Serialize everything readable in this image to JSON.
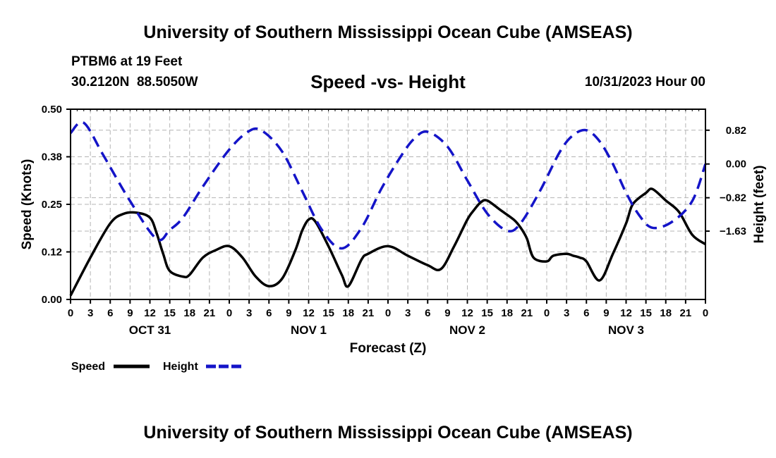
{
  "header": {
    "title": "University of Southern Mississippi Ocean Cube (AMSEAS)",
    "station": "PTBM6 at 19 Feet",
    "location": "30.2120N  88.5050W",
    "subtitle": "Speed -vs- Height",
    "date": "10/31/2023 Hour 00"
  },
  "footer": {
    "title": "University of Southern Mississippi Ocean Cube (AMSEAS)"
  },
  "chart_data": {
    "type": "line",
    "title": "Speed -vs- Height",
    "xlabel": "Forecast (Z)",
    "ylabel": "Speed (Knots)",
    "y2label": "Height (feet)",
    "xlim": [
      0,
      96
    ],
    "ylim": [
      0,
      0.5
    ],
    "y2lim": [
      -3.29,
      1.33
    ],
    "x_ticks": [
      0,
      3,
      6,
      9,
      12,
      15,
      18,
      21,
      24,
      27,
      30,
      33,
      36,
      39,
      42,
      45,
      48,
      51,
      54,
      57,
      60,
      63,
      66,
      69,
      72,
      75,
      78,
      81,
      84,
      87,
      90,
      93,
      96
    ],
    "x_tick_labels": [
      "0",
      "3",
      "6",
      "9",
      "12",
      "15",
      "18",
      "21",
      "0",
      "3",
      "6",
      "9",
      "12",
      "15",
      "18",
      "21",
      "0",
      "3",
      "6",
      "9",
      "12",
      "15",
      "18",
      "21",
      "0",
      "3",
      "6",
      "9",
      "12",
      "15",
      "18",
      "21",
      "0"
    ],
    "day_labels": [
      {
        "x": 12,
        "label": "OCT 31"
      },
      {
        "x": 36,
        "label": "NOV 1"
      },
      {
        "x": 60,
        "label": "NOV 2"
      },
      {
        "x": 84,
        "label": "NOV 3"
      }
    ],
    "y_ticks": [
      0,
      0.125,
      0.25,
      0.375,
      0.5
    ],
    "y_tick_labels": [
      "0.00",
      "0.12",
      "0.25",
      "0.38",
      "0.50"
    ],
    "y2_ticks": [
      0.82,
      0,
      -0.82,
      -1.63
    ],
    "y2_tick_labels": [
      "0.82",
      "0.00",
      "−0.82",
      "−1.63"
    ],
    "grid": true,
    "legend": [
      {
        "name": "Speed",
        "color": "#000000",
        "dash": "solid"
      },
      {
        "name": "Height",
        "color": "#1414c8",
        "dash": "dashed"
      }
    ],
    "series": [
      {
        "name": "Speed",
        "axis": "left",
        "color": "#000000",
        "x": [
          0,
          3,
          6,
          8,
          10,
          12,
          13,
          14,
          15,
          17,
          18,
          20,
          22,
          24,
          26,
          28,
          30,
          32,
          34,
          35,
          36,
          37,
          39,
          41,
          42,
          44,
          45,
          48,
          51,
          54,
          56,
          58,
          60,
          61,
          62,
          63,
          65,
          67,
          68,
          69,
          70,
          72,
          73,
          75,
          76,
          77,
          78,
          80,
          82,
          84,
          85,
          87,
          88,
          90,
          92,
          94,
          96
        ],
        "y": [
          0.01,
          0.11,
          0.2,
          0.225,
          0.228,
          0.215,
          0.175,
          0.12,
          0.075,
          0.06,
          0.065,
          0.11,
          0.13,
          0.14,
          0.11,
          0.06,
          0.035,
          0.055,
          0.13,
          0.18,
          0.21,
          0.205,
          0.14,
          0.065,
          0.035,
          0.105,
          0.12,
          0.14,
          0.115,
          0.09,
          0.08,
          0.14,
          0.21,
          0.235,
          0.255,
          0.26,
          0.235,
          0.21,
          0.19,
          0.16,
          0.11,
          0.1,
          0.115,
          0.12,
          0.115,
          0.11,
          0.1,
          0.05,
          0.12,
          0.2,
          0.25,
          0.28,
          0.29,
          0.26,
          0.23,
          0.17,
          0.145
        ]
      },
      {
        "name": "Height",
        "axis": "right",
        "color": "#1414c8",
        "x": [
          0,
          2,
          5,
          9,
          13,
          15,
          17,
          20,
          24,
          27,
          29,
          32,
          35,
          38,
          41,
          44,
          47,
          50,
          52,
          54,
          57,
          60,
          63,
          66,
          68,
          71,
          74,
          76,
          78,
          80,
          82,
          84,
          86,
          88,
          91,
          94,
          96
        ],
        "y": [
          0.75,
          1.0,
          0.2,
          -0.9,
          -1.82,
          -1.6,
          -1.3,
          -0.55,
          0.35,
          0.8,
          0.8,
          0.3,
          -0.65,
          -1.6,
          -2.05,
          -1.55,
          -0.6,
          0.2,
          0.62,
          0.78,
          0.42,
          -0.4,
          -1.2,
          -1.62,
          -1.45,
          -0.65,
          0.3,
          0.7,
          0.82,
          0.55,
          0.0,
          -0.7,
          -1.25,
          -1.55,
          -1.4,
          -0.9,
          0.0
        ]
      }
    ]
  }
}
